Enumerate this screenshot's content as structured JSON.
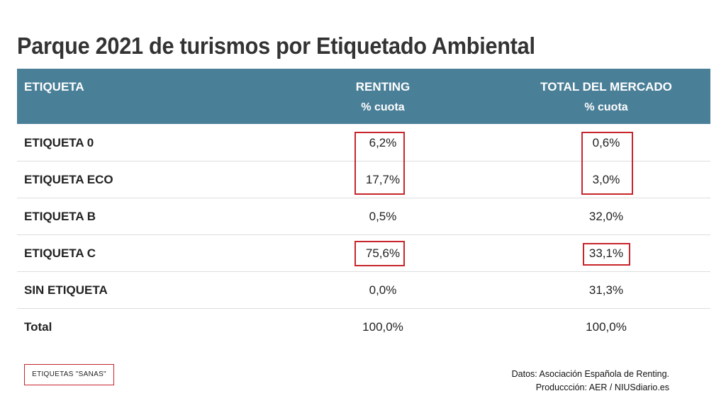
{
  "chart_data": {
    "type": "table",
    "title": "Parque 2021 de turismos por Etiquetado Ambiental",
    "columns": [
      {
        "label": "ETIQUETA",
        "sub": ""
      },
      {
        "label": "RENTING",
        "sub": "% cuota"
      },
      {
        "label": "TOTAL DEL MERCADO",
        "sub": "% cuota"
      }
    ],
    "rows": [
      {
        "label": "ETIQUETA 0",
        "renting": "6,2%",
        "mercado": "0,6%"
      },
      {
        "label": "ETIQUETA ECO",
        "renting": "17,7%",
        "mercado": "3,0%"
      },
      {
        "label": "ETIQUETA B",
        "renting": "0,5%",
        "mercado": "32,0%"
      },
      {
        "label": "ETIQUETA C",
        "renting": "75,6%",
        "mercado": "33,1%"
      },
      {
        "label": "SIN ETIQUETA",
        "renting": "0,0%",
        "mercado": "31,3%"
      },
      {
        "label": "Total",
        "renting": "100,0%",
        "mercado": "100,0%"
      }
    ],
    "series": [
      {
        "name": "RENTING",
        "values": [
          6.2,
          17.7,
          0.5,
          75.6,
          0.0,
          100.0
        ]
      },
      {
        "name": "TOTAL DEL MERCADO",
        "values": [
          0.6,
          3.0,
          32.0,
          33.1,
          31.3,
          100.0
        ]
      }
    ],
    "highlighted_rows": [
      "ETIQUETA 0",
      "ETIQUETA ECO",
      "ETIQUETA C"
    ],
    "highlight_color": "#c8252c",
    "header_color": "#4a7f98"
  },
  "legend": {
    "label": "ETIQUETAS \"SANAS\""
  },
  "source": {
    "line1": "Datos: Asociación Española de Renting.",
    "line2": "Produccción: AER / NIUSdiario.es"
  }
}
